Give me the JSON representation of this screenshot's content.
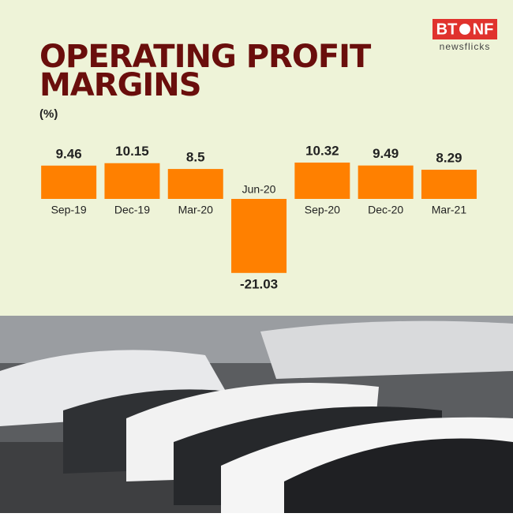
{
  "logo": {
    "left": "BT",
    "right": "NF",
    "tagline": "newsflicks"
  },
  "chart_data": {
    "type": "bar",
    "title_line1": "OPERATING PROFIT",
    "title_line2": "MARGINS",
    "subtitle": "(%)",
    "categories": [
      "Sep-19",
      "Dec-19",
      "Mar-20",
      "Jun-20",
      "Sep-20",
      "Dec-20",
      "Mar-21"
    ],
    "values": [
      9.46,
      10.15,
      8.5,
      -21.03,
      10.32,
      9.49,
      8.29
    ],
    "color": "#ff8000"
  }
}
